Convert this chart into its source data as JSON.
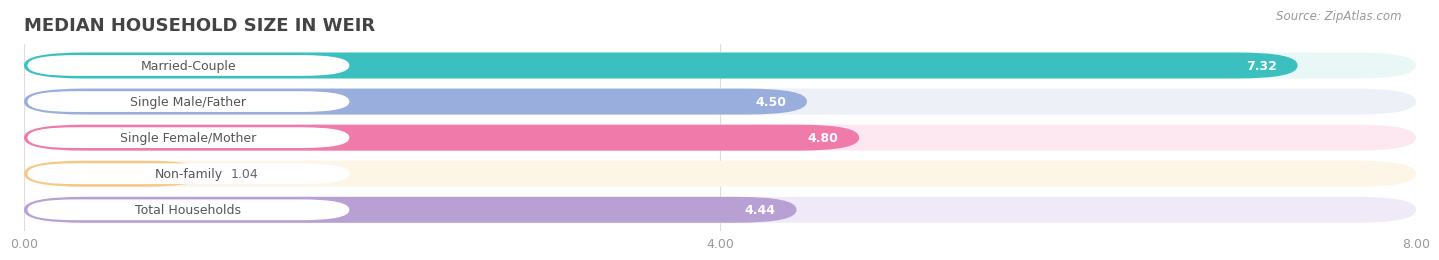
{
  "title": "MEDIAN HOUSEHOLD SIZE IN WEIR",
  "source": "Source: ZipAtlas.com",
  "categories": [
    "Married-Couple",
    "Single Male/Father",
    "Single Female/Mother",
    "Non-family",
    "Total Households"
  ],
  "values": [
    7.32,
    4.5,
    4.8,
    1.04,
    4.44
  ],
  "bar_colors": [
    "#3bbfbf",
    "#9aaedd",
    "#f07aaa",
    "#f5c888",
    "#b9a0d4"
  ],
  "bar_bg_colors": [
    "#eaf7f7",
    "#eef0f8",
    "#fde8f2",
    "#fdf5e6",
    "#f0eaf8"
  ],
  "value_colors": [
    "white",
    "#888888",
    "white",
    "#888888",
    "#888888"
  ],
  "xlim": [
    0,
    8.0
  ],
  "xticks": [
    0.0,
    4.0,
    8.0
  ],
  "xticklabels": [
    "0.00",
    "4.00",
    "8.00"
  ],
  "title_fontsize": 13,
  "label_fontsize": 9,
  "value_fontsize": 9,
  "source_fontsize": 8.5,
  "bg_color": "#ffffff",
  "label_text_color": "#555555",
  "bar_gap": 0.08
}
